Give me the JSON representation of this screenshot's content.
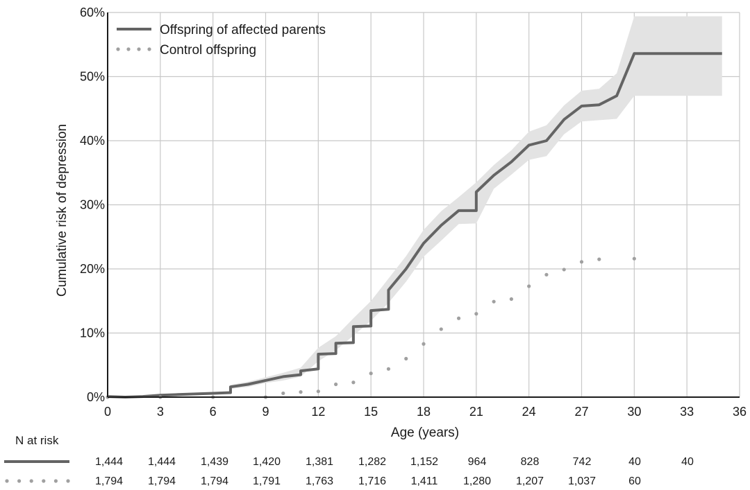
{
  "chart_data": {
    "type": "line",
    "xlabel": "Age (years)",
    "ylabel": "Cumulative risk of depression",
    "xlim": [
      0,
      36
    ],
    "ylim": [
      0,
      60
    ],
    "x_ticks": [
      "0",
      "3",
      "6",
      "9",
      "12",
      "15",
      "18",
      "21",
      "24",
      "27",
      "30",
      "33",
      "36"
    ],
    "y_ticks": [
      "0%",
      "10%",
      "20%",
      "30%",
      "40%",
      "50%",
      "60%"
    ],
    "grid": true,
    "legend_position": "top-left",
    "series": [
      {
        "name": "Offspring of affected parents",
        "style": "solid",
        "color": "#646464",
        "band_color": "#e3e3e3",
        "points": [
          [
            0,
            0.1
          ],
          [
            1,
            0
          ],
          [
            2,
            0.1
          ],
          [
            3,
            0.3
          ],
          [
            4,
            0.4
          ],
          [
            5,
            0.5
          ],
          [
            6,
            0.6
          ],
          [
            7,
            0.7
          ],
          [
            7,
            1.6
          ],
          [
            8,
            2.0
          ],
          [
            9,
            2.6
          ],
          [
            10,
            3.2
          ],
          [
            11,
            3.5
          ],
          [
            11,
            4.1
          ],
          [
            12,
            4.4
          ],
          [
            12,
            6.7
          ],
          [
            13,
            6.8
          ],
          [
            13,
            8.4
          ],
          [
            14,
            8.5
          ],
          [
            14,
            11.0
          ],
          [
            15,
            11.1
          ],
          [
            15,
            13.5
          ],
          [
            16,
            13.7
          ],
          [
            16,
            16.7
          ],
          [
            17,
            20.0
          ],
          [
            18,
            24.0
          ],
          [
            19,
            26.8
          ],
          [
            20,
            29.1
          ],
          [
            21,
            29.1
          ],
          [
            21,
            32.0
          ],
          [
            22,
            34.6
          ],
          [
            23,
            36.7
          ],
          [
            24,
            39.3
          ],
          [
            25,
            40.0
          ],
          [
            26,
            43.3
          ],
          [
            27,
            45.4
          ],
          [
            28,
            45.6
          ],
          [
            29,
            47.0
          ],
          [
            30,
            53.6
          ],
          [
            35,
            53.6
          ]
        ],
        "ci_upper": [
          [
            7,
            1.9
          ],
          [
            8,
            2.4
          ],
          [
            9,
            3.1
          ],
          [
            10,
            3.8
          ],
          [
            11,
            4.6
          ],
          [
            12,
            7.7
          ],
          [
            13,
            9.5
          ],
          [
            14,
            12.3
          ],
          [
            15,
            15.0
          ],
          [
            16,
            18.5
          ],
          [
            17,
            22.0
          ],
          [
            18,
            26.1
          ],
          [
            19,
            29.0
          ],
          [
            20,
            31.2
          ],
          [
            21,
            33.5
          ],
          [
            22,
            36.2
          ],
          [
            23,
            38.5
          ],
          [
            24,
            41.4
          ],
          [
            25,
            42.4
          ],
          [
            26,
            45.5
          ],
          [
            27,
            47.8
          ],
          [
            28,
            48.1
          ],
          [
            29,
            50.5
          ],
          [
            30,
            59.4
          ],
          [
            35,
            59.4
          ]
        ],
        "ci_lower": [
          [
            7,
            1.3
          ],
          [
            8,
            1.6
          ],
          [
            9,
            2.2
          ],
          [
            10,
            2.6
          ],
          [
            11,
            3.2
          ],
          [
            12,
            5.6
          ],
          [
            13,
            7.3
          ],
          [
            14,
            9.6
          ],
          [
            15,
            11.9
          ],
          [
            16,
            14.7
          ],
          [
            17,
            18.0
          ],
          [
            18,
            21.9
          ],
          [
            19,
            24.4
          ],
          [
            20,
            27.0
          ],
          [
            21,
            27.1
          ],
          [
            22,
            32.5
          ],
          [
            23,
            34.7
          ],
          [
            24,
            37.0
          ],
          [
            25,
            37.6
          ],
          [
            26,
            41.0
          ],
          [
            27,
            43.0
          ],
          [
            28,
            43.2
          ],
          [
            29,
            43.4
          ],
          [
            30,
            47.0
          ],
          [
            35,
            47.0
          ]
        ]
      },
      {
        "name": "Control offspring",
        "style": "dotted",
        "color": "#a0a0a0",
        "points": [
          [
            0,
            0
          ],
          [
            3,
            0
          ],
          [
            6,
            0
          ],
          [
            9,
            0
          ],
          [
            10,
            0.6
          ],
          [
            11,
            0.8
          ],
          [
            12,
            0.9
          ],
          [
            13,
            2.0
          ],
          [
            14,
            2.3
          ],
          [
            15,
            3.7
          ],
          [
            16,
            4.4
          ],
          [
            17,
            6.0
          ],
          [
            18,
            8.3
          ],
          [
            19,
            10.6
          ],
          [
            20,
            12.3
          ],
          [
            21,
            13.0
          ],
          [
            22,
            14.9
          ],
          [
            23,
            15.3
          ],
          [
            24,
            17.3
          ],
          [
            25,
            19.1
          ],
          [
            26,
            19.9
          ],
          [
            27,
            21.1
          ],
          [
            28,
            21.5
          ],
          [
            30,
            21.6
          ]
        ]
      }
    ]
  },
  "risk_table": {
    "title": "N at risk",
    "rows": [
      {
        "style": "solid",
        "values": [
          "1,444",
          "1,444",
          "1,439",
          "1,420",
          "1,381",
          "1,282",
          "1,152",
          "964",
          "828",
          "742",
          "40",
          "40"
        ]
      },
      {
        "style": "dotted",
        "values": [
          "1,794",
          "1,794",
          "1,794",
          "1,791",
          "1,763",
          "1,716",
          "1,411",
          "1,280",
          "1,207",
          "1,037",
          "60"
        ]
      }
    ]
  }
}
